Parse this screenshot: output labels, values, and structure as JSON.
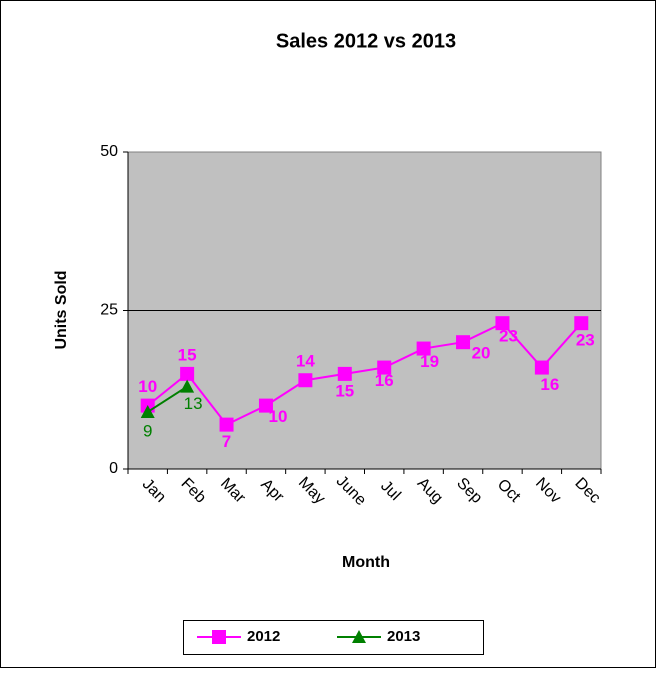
{
  "chart_data": {
    "type": "line",
    "title": "Sales  2012 vs 2013",
    "x_label": "Month",
    "y_label": "Units Sold",
    "categories": [
      "Jan",
      "Feb",
      "Mar",
      "Apr",
      "May",
      "June",
      "Jul",
      "Aug",
      "Sep",
      "Oct",
      "Nov",
      "Dec"
    ],
    "series": [
      {
        "name": "2012",
        "color": "#ff00ff",
        "marker": "square",
        "values": [
          10,
          15,
          7,
          10,
          14,
          15,
          16,
          19,
          20,
          23,
          16,
          23
        ]
      },
      {
        "name": "2013",
        "color": "#008000",
        "marker": "triangle",
        "values": [
          9,
          13,
          null,
          null,
          null,
          null,
          null,
          null,
          null,
          null,
          null,
          null
        ]
      }
    ],
    "ylim": [
      0,
      50
    ],
    "yticks": [
      0,
      25,
      50
    ],
    "grid": true,
    "legend": "bottom"
  }
}
